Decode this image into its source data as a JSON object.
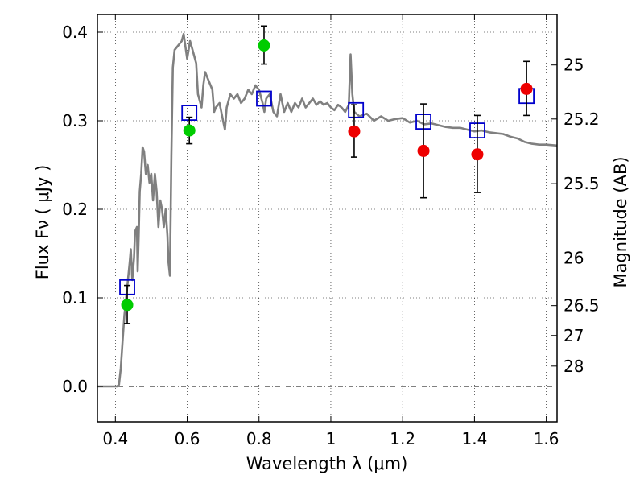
{
  "chart_data": {
    "type": "scatter",
    "xlabel": "Wavelength  λ (μm)",
    "ylabel": "Flux  Fν  ( μJy )",
    "ylabel_right": "Magnitude (AB)",
    "xlim": [
      0.35,
      1.63
    ],
    "ylim": [
      -0.04,
      0.42
    ],
    "grid": true,
    "x_ticks": [
      {
        "value": 0.4,
        "label": "0.4"
      },
      {
        "value": 0.6,
        "label": "0.6"
      },
      {
        "value": 0.8,
        "label": "0.8"
      },
      {
        "value": 1.0,
        "label": "1"
      },
      {
        "value": 1.2,
        "label": "1.2"
      },
      {
        "value": 1.4,
        "label": "1.4"
      },
      {
        "value": 1.6,
        "label": "1.6"
      }
    ],
    "y_ticks": [
      {
        "value": 0.0,
        "label": "0.0"
      },
      {
        "value": 0.1,
        "label": "0.1"
      },
      {
        "value": 0.2,
        "label": "0.2"
      },
      {
        "value": 0.3,
        "label": "0.3"
      },
      {
        "value": 0.4,
        "label": "0.4"
      }
    ],
    "right_ticks": [
      {
        "mag": 25,
        "flux": 0.363,
        "label": "25"
      },
      {
        "mag": 25.2,
        "flux": 0.302,
        "label": "25.2"
      },
      {
        "mag": 25.5,
        "flux": 0.229,
        "label": "25.5"
      },
      {
        "mag": 26,
        "flux": 0.145,
        "label": "26"
      },
      {
        "mag": 26.5,
        "flux": 0.0912,
        "label": "26.5"
      },
      {
        "mag": 27,
        "flux": 0.0575,
        "label": "27"
      },
      {
        "mag": 28,
        "flux": 0.0229,
        "label": "28"
      }
    ],
    "series": [
      {
        "kind": "line",
        "color": "#808080",
        "points": [
          [
            0.35,
            0.0
          ],
          [
            0.405,
            0.0
          ],
          [
            0.41,
            0.002
          ],
          [
            0.415,
            0.02
          ],
          [
            0.42,
            0.05
          ],
          [
            0.425,
            0.08
          ],
          [
            0.43,
            0.1
          ],
          [
            0.435,
            0.12
          ],
          [
            0.44,
            0.14
          ],
          [
            0.443,
            0.155
          ],
          [
            0.447,
            0.12
          ],
          [
            0.452,
            0.145
          ],
          [
            0.455,
            0.175
          ],
          [
            0.46,
            0.18
          ],
          [
            0.462,
            0.13
          ],
          [
            0.465,
            0.17
          ],
          [
            0.468,
            0.22
          ],
          [
            0.472,
            0.24
          ],
          [
            0.476,
            0.27
          ],
          [
            0.48,
            0.265
          ],
          [
            0.485,
            0.24
          ],
          [
            0.49,
            0.25
          ],
          [
            0.495,
            0.23
          ],
          [
            0.5,
            0.24
          ],
          [
            0.505,
            0.21
          ],
          [
            0.51,
            0.24
          ],
          [
            0.515,
            0.22
          ],
          [
            0.52,
            0.18
          ],
          [
            0.525,
            0.21
          ],
          [
            0.53,
            0.2
          ],
          [
            0.535,
            0.18
          ],
          [
            0.54,
            0.2
          ],
          [
            0.545,
            0.17
          ],
          [
            0.548,
            0.14
          ],
          [
            0.552,
            0.125
          ],
          [
            0.556,
            0.26
          ],
          [
            0.56,
            0.36
          ],
          [
            0.565,
            0.38
          ],
          [
            0.575,
            0.385
          ],
          [
            0.585,
            0.39
          ],
          [
            0.59,
            0.398
          ],
          [
            0.6,
            0.37
          ],
          [
            0.608,
            0.39
          ],
          [
            0.615,
            0.38
          ],
          [
            0.625,
            0.365
          ],
          [
            0.63,
            0.33
          ],
          [
            0.64,
            0.315
          ],
          [
            0.645,
            0.34
          ],
          [
            0.65,
            0.355
          ],
          [
            0.66,
            0.345
          ],
          [
            0.67,
            0.335
          ],
          [
            0.675,
            0.31
          ],
          [
            0.68,
            0.315
          ],
          [
            0.69,
            0.32
          ],
          [
            0.7,
            0.3
          ],
          [
            0.705,
            0.29
          ],
          [
            0.71,
            0.315
          ],
          [
            0.72,
            0.33
          ],
          [
            0.73,
            0.325
          ],
          [
            0.74,
            0.33
          ],
          [
            0.75,
            0.32
          ],
          [
            0.76,
            0.325
          ],
          [
            0.77,
            0.335
          ],
          [
            0.78,
            0.33
          ],
          [
            0.79,
            0.34
          ],
          [
            0.8,
            0.335
          ],
          [
            0.81,
            0.32
          ],
          [
            0.815,
            0.31
          ],
          [
            0.82,
            0.325
          ],
          [
            0.83,
            0.33
          ],
          [
            0.84,
            0.31
          ],
          [
            0.85,
            0.305
          ],
          [
            0.86,
            0.33
          ],
          [
            0.87,
            0.31
          ],
          [
            0.88,
            0.32
          ],
          [
            0.89,
            0.31
          ],
          [
            0.9,
            0.32
          ],
          [
            0.91,
            0.315
          ],
          [
            0.92,
            0.325
          ],
          [
            0.93,
            0.315
          ],
          [
            0.94,
            0.32
          ],
          [
            0.95,
            0.325
          ],
          [
            0.96,
            0.318
          ],
          [
            0.97,
            0.322
          ],
          [
            0.98,
            0.318
          ],
          [
            0.99,
            0.32
          ],
          [
            1.0,
            0.315
          ],
          [
            1.01,
            0.312
          ],
          [
            1.02,
            0.318
          ],
          [
            1.03,
            0.315
          ],
          [
            1.04,
            0.31
          ],
          [
            1.05,
            0.318
          ],
          [
            1.055,
            0.375
          ],
          [
            1.06,
            0.33
          ],
          [
            1.065,
            0.31
          ],
          [
            1.08,
            0.305
          ],
          [
            1.1,
            0.308
          ],
          [
            1.12,
            0.3
          ],
          [
            1.14,
            0.305
          ],
          [
            1.16,
            0.3
          ],
          [
            1.18,
            0.302
          ],
          [
            1.2,
            0.303
          ],
          [
            1.22,
            0.298
          ],
          [
            1.24,
            0.3
          ],
          [
            1.26,
            0.296
          ],
          [
            1.28,
            0.297
          ],
          [
            1.3,
            0.295
          ],
          [
            1.32,
            0.293
          ],
          [
            1.34,
            0.292
          ],
          [
            1.36,
            0.292
          ],
          [
            1.38,
            0.29
          ],
          [
            1.4,
            0.288
          ],
          [
            1.42,
            0.289
          ],
          [
            1.44,
            0.287
          ],
          [
            1.46,
            0.286
          ],
          [
            1.48,
            0.285
          ],
          [
            1.5,
            0.282
          ],
          [
            1.52,
            0.28
          ],
          [
            1.54,
            0.276
          ],
          [
            1.56,
            0.274
          ],
          [
            1.58,
            0.273
          ],
          [
            1.6,
            0.273
          ],
          [
            1.63,
            0.272
          ]
        ]
      },
      {
        "kind": "marker",
        "marker": "open-square",
        "color": "#0000cc",
        "points": [
          [
            0.433,
            0.112
          ],
          [
            0.606,
            0.309
          ],
          [
            0.814,
            0.325
          ],
          [
            1.07,
            0.312
          ],
          [
            1.258,
            0.299
          ],
          [
            1.408,
            0.289
          ],
          [
            1.545,
            0.328
          ]
        ]
      },
      {
        "kind": "marker",
        "marker": "circle",
        "color": "#00cc00",
        "points": [
          [
            0.433,
            0.092,
            0.071,
            0.114
          ],
          [
            0.606,
            0.289,
            0.274,
            0.304
          ],
          [
            0.814,
            0.385,
            0.364,
            0.407
          ]
        ]
      },
      {
        "kind": "marker",
        "marker": "circle",
        "color": "#ee0000",
        "points": [
          [
            1.065,
            0.288,
            0.259,
            0.318
          ],
          [
            1.258,
            0.266,
            0.213,
            0.319
          ],
          [
            1.408,
            0.262,
            0.219,
            0.306
          ],
          [
            1.545,
            0.336,
            0.306,
            0.367
          ]
        ]
      }
    ]
  }
}
